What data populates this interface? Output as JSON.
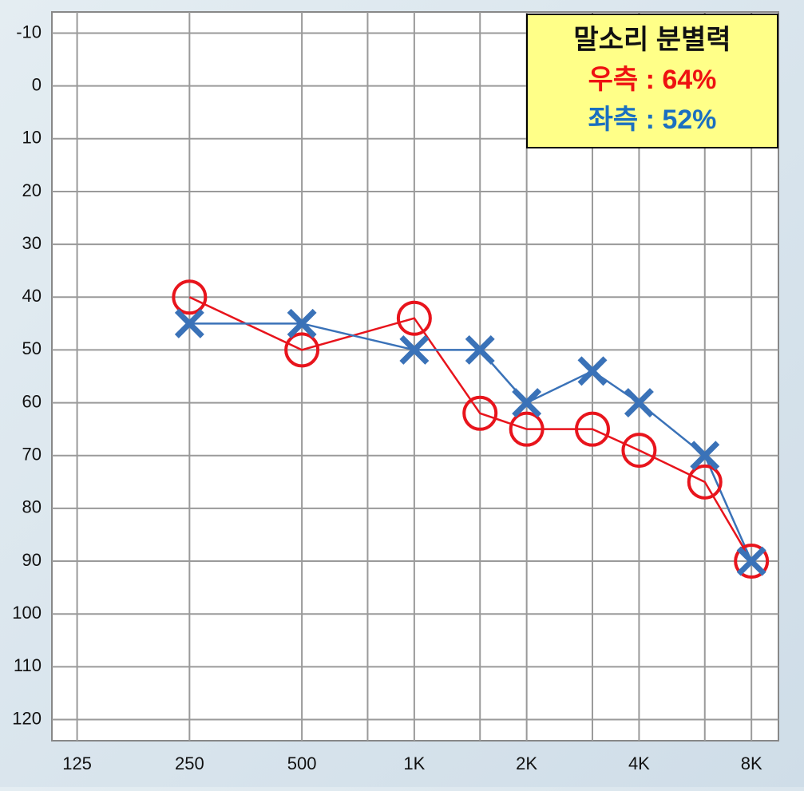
{
  "chart_data": {
    "type": "line",
    "x_scale": "log",
    "y_inverted": true,
    "grid": true,
    "x": [
      250,
      500,
      1000,
      1500,
      2000,
      3000,
      4000,
      6000,
      8000
    ],
    "series": [
      {
        "name": "우측",
        "color": "#e8141c",
        "marker": "circle",
        "values": [
          40,
          50,
          44,
          62,
          65,
          65,
          69,
          75,
          90
        ]
      },
      {
        "name": "좌측",
        "color": "#3a72b8",
        "marker": "cross",
        "values": [
          45,
          45,
          50,
          50,
          60,
          54,
          60,
          70,
          90
        ]
      }
    ],
    "xlim": [
      107,
      9450
    ],
    "xticks": [
      125,
      250,
      500,
      {
        "value": 1000,
        "label": "1K"
      },
      {
        "value": 2000,
        "label": "2K"
      },
      {
        "value": 4000,
        "label": "4K"
      },
      {
        "value": 8000,
        "label": "8K"
      }
    ],
    "xminor": [
      750,
      1500,
      3000,
      6000
    ],
    "ylim": [
      -14,
      124
    ],
    "yticks": [
      -10,
      0,
      10,
      20,
      30,
      40,
      50,
      60,
      70,
      80,
      90,
      100,
      110,
      120
    ],
    "annotation": {
      "title": "말소리 분별력",
      "lines": [
        {
          "text": "우측 : 64%",
          "color": "#ee1111"
        },
        {
          "text": "좌측 : 52%",
          "color": "#1a6fc0"
        }
      ]
    }
  }
}
